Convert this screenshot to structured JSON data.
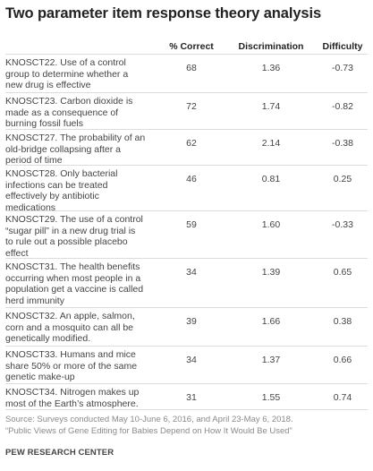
{
  "title": "Two parameter item response theory analysis",
  "columns": {
    "pct_correct": "% Correct",
    "discrimination": "Discrimination",
    "difficulty": "Difficulty"
  },
  "chart_data": {
    "type": "table",
    "title": "Two parameter item response theory analysis",
    "columns": [
      "% Correct",
      "Discrimination",
      "Difficulty"
    ],
    "rows": [
      {
        "lines": [
          "KNOSCT22. Use of a control",
          "group to determine whether a",
          "new drug is effective"
        ],
        "pct_correct": "68",
        "discrimination": "1.36",
        "difficulty": "-0.73"
      },
      {
        "lines": [
          "KNOSCT23. Carbon dioxide is",
          "made as a consequence of",
          "burning fossil fuels"
        ],
        "pct_correct": "72",
        "discrimination": "1.74",
        "difficulty": "-0.82"
      },
      {
        "lines": [
          "KNOSCT27. The probability of an",
          "old-bridge collapsing after a",
          "period of time"
        ],
        "pct_correct": "62",
        "discrimination": "2.14",
        "difficulty": "-0.38"
      },
      {
        "lines": [
          "KNOSCT28. Only bacterial",
          "infections can be treated",
          "effectively by antibiotic",
          "medications"
        ],
        "pct_correct": "46",
        "discrimination": "0.81",
        "difficulty": "0.25"
      },
      {
        "lines": [
          "KNOSCT29. The use of a control",
          "“sugar pill” in a new drug trial is",
          "to rule out a possible placebo",
          "effect"
        ],
        "pct_correct": "59",
        "discrimination": "1.60",
        "difficulty": "-0.33"
      },
      {
        "lines": [
          "KNOSCT31. The health benefits",
          "occurring when most people in a",
          "population get a vaccine is called",
          "herd immunity"
        ],
        "pct_correct": "34",
        "discrimination": "1.39",
        "difficulty": "0.65"
      },
      {
        "lines": [
          "KNOSCT32. An apple, salmon,",
          "corn and a mosquito can all be",
          "genetically modified."
        ],
        "pct_correct": "39",
        "discrimination": "1.66",
        "difficulty": "0.38"
      },
      {
        "lines": [
          "KNOSCT33. Humans and mice",
          "share 50% or more of the same",
          "genetic make-up"
        ],
        "pct_correct": "34",
        "discrimination": "1.37",
        "difficulty": "0.66"
      },
      {
        "lines": [
          "KNOSCT34. Nitrogen makes up",
          "most of the Earth’s atmosphere."
        ],
        "pct_correct": "31",
        "discrimination": "1.55",
        "difficulty": "0.74"
      }
    ]
  },
  "footer": {
    "source": "Source: Surveys conducted May 10-June 6, 2016, and April 23-May 6, 2018.",
    "report": "“Public Views of Gene Editing for Babies Depend on How It Would Be Used”",
    "org": "PEW RESEARCH CENTER"
  }
}
